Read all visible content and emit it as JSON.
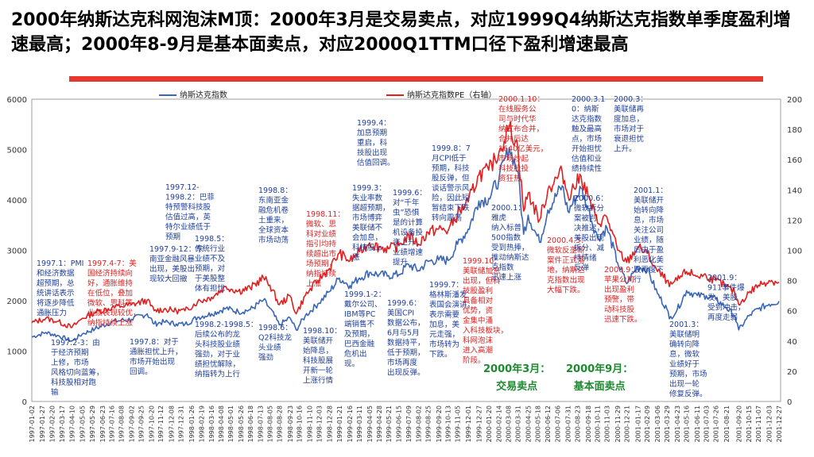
{
  "page": {
    "title": "2000年纳斯达克科网泡沫M顶：2000年3月是交易卖点，对应1999Q4纳斯达克指数单季度盈利增速最高；2000年8-9月是基本面卖点，对应2000Q1TTM口径下盈利增速最高"
  },
  "chart_data": {
    "type": "line",
    "title": "",
    "colors": {
      "index": "#3a66b8",
      "pe": "#e02020",
      "annotation_red": "#e02020",
      "annotation_blue": "#1f3f9e",
      "signal_green": "#1c8a2e",
      "title_bar": "#e8372c"
    },
    "y_left": {
      "label": "",
      "ylim": [
        0,
        6000
      ],
      "ticks": [
        "0",
        "1000",
        "2000",
        "3000",
        "4000",
        "5000",
        "6000"
      ]
    },
    "y_right": {
      "label": "",
      "ylim": [
        0,
        200
      ],
      "ticks": [
        "0",
        "20",
        "40",
        "60",
        "80",
        "100",
        "120",
        "140",
        "160",
        "180",
        "200"
      ]
    },
    "x_ticks": [
      "1997-01-02",
      "1997-01-27",
      "1997-02-20",
      "1997-03-17",
      "1997-04-10",
      "1997-05-05",
      "1997-05-29",
      "1997-06-23",
      "1997-07-16",
      "1997-08-08",
      "1997-09-02",
      "1997-09-25",
      "1997-10-20",
      "1997-11-12",
      "1997-12-08",
      "1997-12-31",
      "1998-01-26",
      "1998-02-19",
      "1998-03-16",
      "1998-04-08",
      "1998-05-01",
      "1998-05-26",
      "1998-06-18",
      "1998-07-13",
      "1998-08-05",
      "1998-08-28",
      "1998-09-23",
      "1998-10-16",
      "1998-11-10",
      "1998-12-03",
      "1998-12-28",
      "1999-01-21",
      "1999-02-16",
      "1999-03-11",
      "1999-04-05",
      "1999-04-28",
      "1999-05-21",
      "1999-06-15",
      "1999-07-09",
      "1999-08-02",
      "1999-08-25",
      "1999-09-20",
      "1999-10-13",
      "1999-11-05",
      "1999-12-01",
      "1999-12-27",
      "2000-01-20",
      "2000-02-14",
      "2000-03-08",
      "2000-03-31",
      "2000-04-25",
      "2000-05-18",
      "2000-06-12",
      "2000-07-06",
      "2000-07-31",
      "2000-08-23",
      "2000-09-18",
      "2000-10-11",
      "2000-11-03",
      "2000-11-29",
      "2000-12-21",
      "2001-01-17",
      "2001-02-09",
      "2001-03-06",
      "2001-03-29",
      "2001-04-23",
      "2001-05-16",
      "2001-06-11",
      "2001-07-03",
      "2001-07-26",
      "2001-08-21",
      "2001-09-20",
      "2001-10-15",
      "2001-11-07",
      "2001-12-03",
      "2001-12-27"
    ],
    "legend": [
      {
        "name": "纳斯达克指数",
        "axis": "left"
      },
      {
        "name": "纳斯达克指数PE（右轴）",
        "axis": "right"
      }
    ],
    "series": [
      {
        "name": "纳斯达克指数",
        "axis": "left",
        "points": [
          [
            "1997-01-02",
            1280
          ],
          [
            "1997-02-05",
            1370
          ],
          [
            "1997-03-05",
            1310
          ],
          [
            "1997-04-10",
            1200
          ],
          [
            "1997-05-05",
            1340
          ],
          [
            "1997-06-05",
            1440
          ],
          [
            "1997-07-16",
            1580
          ],
          [
            "1997-08-08",
            1610
          ],
          [
            "1997-09-02",
            1630
          ],
          [
            "1997-10-10",
            1740
          ],
          [
            "1997-10-27",
            1540
          ],
          [
            "1997-11-20",
            1580
          ],
          [
            "1997-12-20",
            1540
          ],
          [
            "1998-01-10",
            1530
          ],
          [
            "1998-02-10",
            1670
          ],
          [
            "1998-03-16",
            1740
          ],
          [
            "1998-04-20",
            1850
          ],
          [
            "1998-05-20",
            1780
          ],
          [
            "1998-06-18",
            1820
          ],
          [
            "1998-07-20",
            2010
          ],
          [
            "1998-08-05",
            1850
          ],
          [
            "1998-08-28",
            1520
          ],
          [
            "1998-09-23",
            1660
          ],
          [
            "1998-10-08",
            1420
          ],
          [
            "1998-10-30",
            1700
          ],
          [
            "1998-11-30",
            1940
          ],
          [
            "1998-12-28",
            2180
          ],
          [
            "1999-01-21",
            2450
          ],
          [
            "1999-02-16",
            2300
          ],
          [
            "1999-03-11",
            2450
          ],
          [
            "1999-04-05",
            2560
          ],
          [
            "1999-04-28",
            2520
          ],
          [
            "1999-05-21",
            2500
          ],
          [
            "1999-06-15",
            2520
          ],
          [
            "1999-07-09",
            2720
          ],
          [
            "1999-08-02",
            2600
          ],
          [
            "1999-08-25",
            2780
          ],
          [
            "1999-09-20",
            2810
          ],
          [
            "1999-10-13",
            2800
          ],
          [
            "1999-11-05",
            3120
          ],
          [
            "1999-12-01",
            3420
          ],
          [
            "1999-12-27",
            3980
          ],
          [
            "2000-01-20",
            4030
          ],
          [
            "2000-02-14",
            4420
          ],
          [
            "2000-03-10",
            5040
          ],
          [
            "2000-03-31",
            4570
          ],
          [
            "2000-04-14",
            3320
          ],
          [
            "2000-04-25",
            3700
          ],
          [
            "2000-05-23",
            3160
          ],
          [
            "2000-06-12",
            3800
          ],
          [
            "2000-07-17",
            4280
          ],
          [
            "2000-07-31",
            3770
          ],
          [
            "2000-09-01",
            4230
          ],
          [
            "2000-09-18",
            3830
          ],
          [
            "2000-10-11",
            3240
          ],
          [
            "2000-11-03",
            3450
          ],
          [
            "2000-11-29",
            2750
          ],
          [
            "2000-12-21",
            2340
          ],
          [
            "2001-01-17",
            2680
          ],
          [
            "2001-02-09",
            2630
          ],
          [
            "2001-03-06",
            2140
          ],
          [
            "2001-03-29",
            1840
          ],
          [
            "2001-04-04",
            1640
          ],
          [
            "2001-04-23",
            1820
          ],
          [
            "2001-05-16",
            2200
          ],
          [
            "2001-06-11",
            2100
          ],
          [
            "2001-07-03",
            2100
          ],
          [
            "2001-07-26",
            2030
          ],
          [
            "2001-08-21",
            1860
          ],
          [
            "2001-09-10",
            1700
          ],
          [
            "2001-09-20",
            1420
          ],
          [
            "2001-10-15",
            1700
          ],
          [
            "2001-11-07",
            1840
          ],
          [
            "2001-12-03",
            1930
          ],
          [
            "2001-12-27",
            1990
          ]
        ]
      },
      {
        "name": "纳斯达克指数PE（右轴）",
        "axis": "right",
        "points": [
          [
            "1997-01-02",
            52
          ],
          [
            "1997-02-05",
            55
          ],
          [
            "1997-03-05",
            53
          ],
          [
            "1997-04-10",
            49
          ],
          [
            "1997-05-05",
            55
          ],
          [
            "1997-06-05",
            59
          ],
          [
            "1997-07-16",
            62
          ],
          [
            "1997-08-08",
            63
          ],
          [
            "1997-09-02",
            64
          ],
          [
            "1997-10-10",
            67
          ],
          [
            "1997-10-27",
            60
          ],
          [
            "1997-11-20",
            61
          ],
          [
            "1997-12-20",
            60
          ],
          [
            "1998-01-10",
            60
          ],
          [
            "1998-02-10",
            66
          ],
          [
            "1998-03-16",
            69
          ],
          [
            "1998-04-20",
            76
          ],
          [
            "1998-05-20",
            73
          ],
          [
            "1998-06-18",
            75
          ],
          [
            "1998-07-20",
            82
          ],
          [
            "1998-08-05",
            77
          ],
          [
            "1998-08-28",
            64
          ],
          [
            "1998-09-23",
            70
          ],
          [
            "1998-10-08",
            58
          ],
          [
            "1998-10-30",
            70
          ],
          [
            "1998-11-30",
            80
          ],
          [
            "1998-12-28",
            88
          ],
          [
            "1999-01-21",
            98
          ],
          [
            "1999-02-16",
            93
          ],
          [
            "1999-03-11",
            99
          ],
          [
            "1999-04-05",
            105
          ],
          [
            "1999-04-28",
            102
          ],
          [
            "1999-05-21",
            101
          ],
          [
            "1999-06-15",
            103
          ],
          [
            "1999-07-09",
            110
          ],
          [
            "1999-08-02",
            104
          ],
          [
            "1999-08-25",
            112
          ],
          [
            "1999-09-20",
            114
          ],
          [
            "1999-10-13",
            113
          ],
          [
            "1999-11-05",
            124
          ],
          [
            "1999-12-01",
            132
          ],
          [
            "1999-12-27",
            150
          ],
          [
            "2000-01-20",
            153
          ],
          [
            "2000-02-14",
            165
          ],
          [
            "2000-03-10",
            182
          ],
          [
            "2000-03-31",
            168
          ],
          [
            "2000-04-14",
            126
          ],
          [
            "2000-04-25",
            138
          ],
          [
            "2000-05-23",
            120
          ],
          [
            "2000-06-12",
            140
          ],
          [
            "2000-07-17",
            152
          ],
          [
            "2000-07-31",
            136
          ],
          [
            "2000-09-01",
            149
          ],
          [
            "2000-09-18",
            136
          ],
          [
            "2000-10-11",
            118
          ],
          [
            "2000-11-03",
            122
          ],
          [
            "2000-11-29",
            100
          ],
          [
            "2000-12-21",
            92
          ],
          [
            "2001-01-17",
            102
          ],
          [
            "2001-02-09",
            98
          ],
          [
            "2001-03-06",
            86
          ],
          [
            "2001-03-29",
            80
          ],
          [
            "2001-04-04",
            76
          ],
          [
            "2001-04-23",
            80
          ],
          [
            "2001-05-16",
            86
          ],
          [
            "2001-06-11",
            83
          ],
          [
            "2001-07-03",
            83
          ],
          [
            "2001-07-26",
            80
          ],
          [
            "2001-08-21",
            76
          ],
          [
            "2001-09-10",
            72
          ],
          [
            "2001-09-20",
            64
          ],
          [
            "2001-10-15",
            72
          ],
          [
            "2001-11-07",
            77
          ],
          [
            "2001-12-03",
            80
          ],
          [
            "2001-12-27",
            79
          ]
        ]
      }
    ],
    "annotations": [
      {
        "color": "blue",
        "lines": [
          "1997.1：PMI",
          "和经济数据",
          "超预期，总",
          "统讲话表示",
          "将逐步降低",
          "通胀压力"
        ]
      },
      {
        "color": "red",
        "lines": [
          "1997.4-7：美",
          "国经济持续向",
          "好，通胀维持",
          "在低位，叠加",
          "微软、思科等",
          "业绩表现较优，",
          "纳指持续上涨"
        ]
      },
      {
        "color": "blue",
        "lines": [
          "1997.2-3：由",
          "于经济预期",
          "上修，市场",
          "风格切向蓝筹，",
          "科技股相对跑",
          "输"
        ]
      },
      {
        "color": "blue",
        "lines": [
          "1997.9-12：东",
          "南亚金融风暴",
          "出现，美股出",
          "现较大回撤"
        ]
      },
      {
        "color": "blue",
        "lines": [
          "1997.12-",
          "1998.2：巴菲",
          "特预警科技股",
          "估值过高，英",
          "特尔业绩低于",
          "预期"
        ]
      },
      {
        "color": "blue",
        "lines": [
          "1997.8：对于",
          "通胀担忧上升，",
          "市场开始出现",
          "回调。"
        ]
      },
      {
        "color": "blue",
        "lines": [
          "1998.5：",
          "传统行业",
          "业绩不及",
          "预期，对",
          "于美股整",
          "体有担忧"
        ]
      },
      {
        "color": "blue",
        "lines": [
          "1998.2-1998.5：",
          "后续公布的龙",
          "头科技股业绩",
          "强劲，对于业",
          "绩担忧解除，",
          "纳指转为上行"
        ]
      },
      {
        "color": "blue",
        "lines": [
          "1998.6：",
          "Q2科技龙",
          "头业绩",
          "强劲"
        ]
      },
      {
        "color": "blue",
        "lines": [
          "1998.8：",
          "东南亚金",
          "融危机卷",
          "土重来，",
          "全球资本",
          "市场动荡"
        ]
      },
      {
        "color": "red",
        "lines": [
          "1998.11：",
          "微软、思",
          "科对业绩",
          "指引均持",
          "续超出市",
          "场预期，",
          "纳指持续",
          "上涨"
        ]
      },
      {
        "color": "blue",
        "lines": [
          "1998.10：",
          "美联储开",
          "始降息，",
          "科技股展",
          "开新一轮",
          "上涨行情"
        ]
      },
      {
        "color": "blue",
        "lines": [
          "1999.4：",
          "加息预期",
          "重启，科",
          "技股出现",
          "估值回调。"
        ]
      },
      {
        "color": "blue",
        "lines": [
          "1999.3：",
          "失业率数",
          "据超预期，",
          "市场博弈",
          "美联储不",
          "会加息，",
          "科技股上",
          "涨"
        ]
      },
      {
        "color": "blue",
        "lines": [
          "1999.1-2：",
          "戴尔公司、",
          "IBM等PC",
          "端销售不",
          "及预期，",
          "巴西金融",
          "危机出",
          "现。"
        ]
      },
      {
        "color": "blue",
        "lines": [
          "1999.6：",
          "对“千年",
          "虫”恐惧",
          "是的计算",
          "机设备投",
          "资上升，",
          "业绩增速",
          "提升"
        ]
      },
      {
        "color": "blue",
        "lines": [
          "1999.6：",
          "美国CPI",
          "数据公布，",
          "6月与5月",
          "数据持平，",
          "低于预期，",
          "市场再度",
          "出现反弹。"
        ]
      },
      {
        "color": "blue",
        "lines": [
          "1999.8：7",
          "月CPI低于",
          "预期，科技",
          "股反弹，但",
          "谈话警示风",
          "险，因此短",
          "暂结束下跌",
          "转向震荡"
        ]
      },
      {
        "color": "blue",
        "lines": [
          "1999.7：",
          "格林斯潘发",
          "表国会演讲，",
          "表示需要",
          "加息，美",
          "元走强，",
          "市场转为",
          "下跌。"
        ]
      },
      {
        "color": "red",
        "lines": [
          "1999.10：",
          "美联储加息",
          "出现，但科",
          "技股盈利",
          "具备相对",
          "优势，资",
          "金集中涌",
          "入科技板块，",
          "科网泡沫",
          "进入高潮",
          "阶段。"
        ]
      },
      {
        "color": "red",
        "lines": [
          "2000.1.10：",
          "在线服务公",
          "司与时代华",
          "纳宣布合并，",
          "合并后达",
          "1640亿美元，",
          "市场炒起",
          "科技股投",
          "资狂热"
        ]
      },
      {
        "color": "blue",
        "lines": [
          "2000.1：",
          "雅虎",
          "纳入标普",
          "500指数",
          "受到热捧，",
          "推动纳斯达",
          "克指数",
          "迅速上涨"
        ]
      },
      {
        "color": "red",
        "lines": [
          "2000.4.3：",
          "微软反垄断",
          "案件正式落",
          "地，纳斯达",
          "克指数出现",
          "大幅下跌。"
        ]
      },
      {
        "color": "blue",
        "lines": [
          "2000.3.1",
          "0：纳斯",
          "达克指数",
          "触及最高",
          "点，市场",
          "开始担忧",
          "估值和业",
          "绩持续性"
        ]
      },
      {
        "color": "blue",
        "lines": [
          "2000.6：",
          "微软拆分",
          "案被判",
          "决推迟，",
          "美股出现",
          "拆分、减",
          "持情绪",
          "反弹"
        ]
      },
      {
        "color": "blue",
        "lines": [
          "2000.3：",
          "美联储再",
          "度加息，",
          "市场对于",
          "衰退担忧",
          "上升。"
        ]
      },
      {
        "color": "red",
        "lines": [
          "2000.9：",
          "苹果公司",
          "出现盈利",
          "预警，带",
          "动科技股",
          "迅速下跌。"
        ]
      },
      {
        "color": "blue",
        "lines": [
          "2001.1：",
          "美联储开",
          "始转向降",
          "息，市场",
          "关注公司",
          "业绩，随",
          "后由于盈",
          "利恶化美",
          "股再度下",
          "行"
        ]
      },
      {
        "color": "blue",
        "lines": [
          "2001.9：",
          "911事件爆",
          "发，美股",
          "受到冲击，",
          "再度走弱"
        ]
      },
      {
        "color": "blue",
        "lines": [
          "2001.3：",
          "美联储明",
          "确转向降",
          "息，微软",
          "业绩好于",
          "预期，市场",
          "出现一轮",
          "修复反弹。"
        ]
      }
    ],
    "signals": [
      {
        "lines": [
          "2000年3月：",
          "交易卖点"
        ]
      },
      {
        "lines": [
          "2000年9月：",
          "基本面卖点"
        ]
      }
    ]
  }
}
